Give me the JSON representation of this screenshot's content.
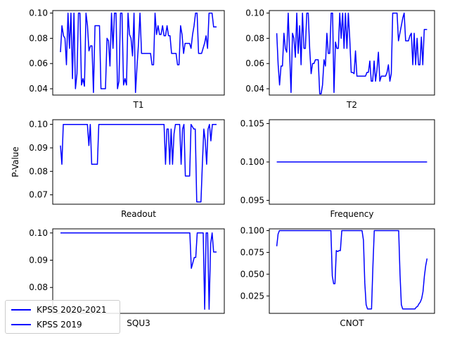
{
  "figure": {
    "ylabel": "P-Value"
  },
  "legend": {
    "entries": [
      {
        "label": "KPSS 2020-2021",
        "color": "#0000ff"
      },
      {
        "label": "KPSS 2019",
        "color": "#0000ff"
      }
    ]
  },
  "chart_data": [
    {
      "type": "line",
      "xlabel": "T1",
      "ylim": [
        0.035,
        0.102
      ],
      "yticks": [
        0.04,
        0.06,
        0.08,
        0.1
      ],
      "ytick_labels": [
        "0.04",
        "0.06",
        "0.08",
        "0.10"
      ],
      "series": [
        {
          "color": "#0000ff",
          "values": [
            0.069,
            0.09,
            0.082,
            0.08,
            0.059,
            0.1,
            0.072,
            0.1,
            0.048,
            0.1,
            0.04,
            0.052,
            0.1,
            0.1,
            0.043,
            0.048,
            0.042,
            0.1,
            0.09,
            0.07,
            0.074,
            0.074,
            0.037,
            0.09,
            0.09,
            0.09,
            0.09,
            0.04,
            0.04,
            0.04,
            0.04,
            0.08,
            0.078,
            0.058,
            0.1,
            0.072,
            0.1,
            0.1,
            0.04,
            0.046,
            0.1,
            0.1,
            0.043,
            0.048,
            0.043,
            0.1,
            0.083,
            0.08,
            0.066,
            0.1,
            0.037,
            0.058,
            0.076,
            0.1,
            0.068,
            0.068,
            0.068,
            0.068,
            0.068,
            0.068,
            0.068,
            0.059,
            0.059,
            0.1,
            0.083,
            0.09,
            0.083,
            0.083,
            0.09,
            0.082,
            0.082,
            0.09,
            0.082,
            0.082,
            0.068,
            0.068,
            0.068,
            0.068,
            0.059,
            0.059,
            0.09,
            0.083,
            0.068,
            0.076,
            0.076,
            0.076,
            0.076,
            0.072,
            0.083,
            0.09,
            0.1,
            0.1,
            0.068,
            0.068,
            0.068,
            0.072,
            0.076,
            0.082,
            0.072,
            0.1,
            0.1,
            0.1,
            0.089,
            0.089,
            0.089
          ]
        }
      ]
    },
    {
      "type": "line",
      "xlabel": "T2",
      "ylim": [
        0.035,
        0.102
      ],
      "yticks": [
        0.04,
        0.06,
        0.08,
        0.1
      ],
      "ytick_labels": [
        "0.04",
        "0.06",
        "0.08",
        "0.10"
      ],
      "series": [
        {
          "color": "#0000ff",
          "values": [
            0.084,
            0.059,
            0.043,
            0.058,
            0.058,
            0.084,
            0.072,
            0.069,
            0.1,
            0.068,
            0.037,
            0.084,
            0.08,
            0.065,
            0.1,
            0.068,
            0.09,
            0.059,
            0.1,
            0.072,
            0.072,
            0.1,
            0.1,
            0.072,
            0.052,
            0.06,
            0.06,
            0.063,
            0.063,
            0.063,
            0.036,
            0.036,
            0.043,
            0.063,
            0.058,
            0.084,
            0.068,
            0.068,
            0.1,
            0.1,
            0.037,
            0.077,
            0.072,
            0.072,
            0.1,
            0.08,
            0.1,
            0.072,
            0.1,
            0.072,
            0.1,
            0.08,
            0.053,
            0.053,
            0.052,
            0.07,
            0.05,
            0.05,
            0.05,
            0.05,
            0.05,
            0.05,
            0.05,
            0.053,
            0.053,
            0.062,
            0.046,
            0.046,
            0.062,
            0.046,
            0.055,
            0.069,
            0.046,
            0.05,
            0.05,
            0.05,
            0.05,
            0.053,
            0.059,
            0.046,
            0.052,
            0.1,
            0.1,
            0.1,
            0.1,
            0.078,
            0.084,
            0.09,
            0.096,
            0.1,
            0.078,
            0.078,
            0.078,
            0.082,
            0.084,
            0.059,
            0.084,
            0.059,
            0.08,
            0.059,
            0.059,
            0.081,
            0.059,
            0.087,
            0.087,
            0.087
          ]
        }
      ]
    },
    {
      "type": "line",
      "xlabel": "Readout",
      "ylabel": "P-Value",
      "ylim": [
        0.066,
        0.102
      ],
      "yticks": [
        0.07,
        0.08,
        0.09,
        0.1
      ],
      "ytick_labels": [
        "0.07",
        "0.08",
        "0.09",
        "0.10"
      ],
      "series": [
        {
          "color": "#0000ff",
          "values": [
            0.091,
            0.083,
            0.1,
            0.1,
            0.1,
            0.1,
            0.1,
            0.1,
            0.1,
            0.1,
            0.1,
            0.1,
            0.1,
            0.1,
            0.1,
            0.1,
            0.1,
            0.1,
            0.1,
            0.1,
            0.091,
            0.1,
            0.083,
            0.083,
            0.083,
            0.083,
            0.083,
            0.1,
            0.1,
            0.1,
            0.1,
            0.1,
            0.1,
            0.1,
            0.1,
            0.1,
            0.1,
            0.1,
            0.1,
            0.1,
            0.1,
            0.1,
            0.1,
            0.1,
            0.1,
            0.1,
            0.1,
            0.1,
            0.1,
            0.1,
            0.1,
            0.1,
            0.1,
            0.1,
            0.1,
            0.1,
            0.1,
            0.1,
            0.1,
            0.1,
            0.1,
            0.1,
            0.1,
            0.1,
            0.1,
            0.1,
            0.1,
            0.1,
            0.1,
            0.1,
            0.1,
            0.1,
            0.1,
            0.1,
            0.083,
            0.098,
            0.098,
            0.083,
            0.098,
            0.083,
            0.096,
            0.1,
            0.1,
            0.1,
            0.1,
            0.083,
            0.098,
            0.1,
            0.078,
            0.078,
            0.078,
            0.078,
            0.1,
            0.099,
            0.098,
            0.098,
            0.067,
            0.067,
            0.067,
            0.067,
            0.083,
            0.098,
            0.093,
            0.083,
            0.098,
            0.1,
            0.093,
            0.1,
            0.1,
            0.1,
            0.1
          ]
        }
      ]
    },
    {
      "type": "line",
      "xlabel": "Frequency",
      "ylim": [
        0.0945,
        0.1055
      ],
      "yticks": [
        0.095,
        0.1,
        0.105
      ],
      "ytick_labels": [
        "0.095",
        "0.100",
        "0.105"
      ],
      "series": [
        {
          "color": "#0000ff",
          "values": [
            0.1,
            0.1
          ]
        }
      ]
    },
    {
      "type": "line",
      "xlabel": "SQU3",
      "ylim": [
        0.0705,
        0.1015
      ],
      "yticks": [
        0.08,
        0.09,
        0.1
      ],
      "ytick_labels": [
        "0.08",
        "0.09",
        "0.10"
      ],
      "series": [
        {
          "color": "#0000ff",
          "values": [
            0.1,
            0.1,
            0.1,
            0.1,
            0.1,
            0.1,
            0.1,
            0.1,
            0.1,
            0.1,
            0.1,
            0.1,
            0.1,
            0.1,
            0.1,
            0.1,
            0.1,
            0.1,
            0.1,
            0.1,
            0.1,
            0.1,
            0.1,
            0.1,
            0.1,
            0.1,
            0.1,
            0.1,
            0.1,
            0.1,
            0.1,
            0.1,
            0.1,
            0.1,
            0.1,
            0.1,
            0.1,
            0.1,
            0.1,
            0.1,
            0.1,
            0.1,
            0.1,
            0.1,
            0.1,
            0.1,
            0.1,
            0.1,
            0.1,
            0.1,
            0.1,
            0.1,
            0.1,
            0.1,
            0.1,
            0.1,
            0.1,
            0.1,
            0.1,
            0.1,
            0.1,
            0.1,
            0.1,
            0.1,
            0.1,
            0.1,
            0.1,
            0.1,
            0.1,
            0.1,
            0.1,
            0.1,
            0.1,
            0.1,
            0.1,
            0.1,
            0.1,
            0.1,
            0.1,
            0.1,
            0.1,
            0.1,
            0.1,
            0.1,
            0.1,
            0.1,
            0.1,
            0.1,
            0.087,
            0.089,
            0.091,
            0.091,
            0.1,
            0.1,
            0.1,
            0.1,
            0.1,
            0.072,
            0.1,
            0.1,
            0.072,
            0.096,
            0.1,
            0.093,
            0.093,
            0.093
          ]
        }
      ]
    },
    {
      "type": "line",
      "xlabel": "CNOT",
      "ylim": [
        0.005,
        0.102
      ],
      "yticks": [
        0.025,
        0.05,
        0.075,
        0.1
      ],
      "ytick_labels": [
        "0.025",
        "0.050",
        "0.075",
        "0.100"
      ],
      "series": [
        {
          "color": "#0000ff",
          "values": [
            0.082,
            0.096,
            0.1,
            0.1,
            0.1,
            0.1,
            0.1,
            0.1,
            0.1,
            0.1,
            0.1,
            0.1,
            0.1,
            0.1,
            0.1,
            0.1,
            0.1,
            0.1,
            0.1,
            0.1,
            0.1,
            0.1,
            0.1,
            0.1,
            0.1,
            0.1,
            0.1,
            0.1,
            0.1,
            0.1,
            0.1,
            0.1,
            0.1,
            0.1,
            0.1,
            0.1,
            0.1,
            0.1,
            0.1,
            0.1,
            0.1,
            0.048,
            0.039,
            0.039,
            0.077,
            0.076,
            0.077,
            0.077,
            0.1,
            0.1,
            0.1,
            0.1,
            0.1,
            0.1,
            0.1,
            0.1,
            0.1,
            0.1,
            0.1,
            0.1,
            0.1,
            0.1,
            0.1,
            0.1,
            0.089,
            0.04,
            0.015,
            0.01,
            0.01,
            0.01,
            0.01,
            0.06,
            0.1,
            0.1,
            0.1,
            0.1,
            0.1,
            0.1,
            0.1,
            0.1,
            0.1,
            0.1,
            0.1,
            0.1,
            0.1,
            0.1,
            0.1,
            0.1,
            0.1,
            0.1,
            0.1,
            0.05,
            0.015,
            0.01,
            0.01,
            0.01,
            0.01,
            0.01,
            0.01,
            0.01,
            0.01,
            0.01,
            0.01,
            0.012,
            0.013,
            0.016,
            0.018,
            0.022,
            0.03,
            0.048,
            0.06,
            0.068
          ]
        }
      ]
    }
  ]
}
